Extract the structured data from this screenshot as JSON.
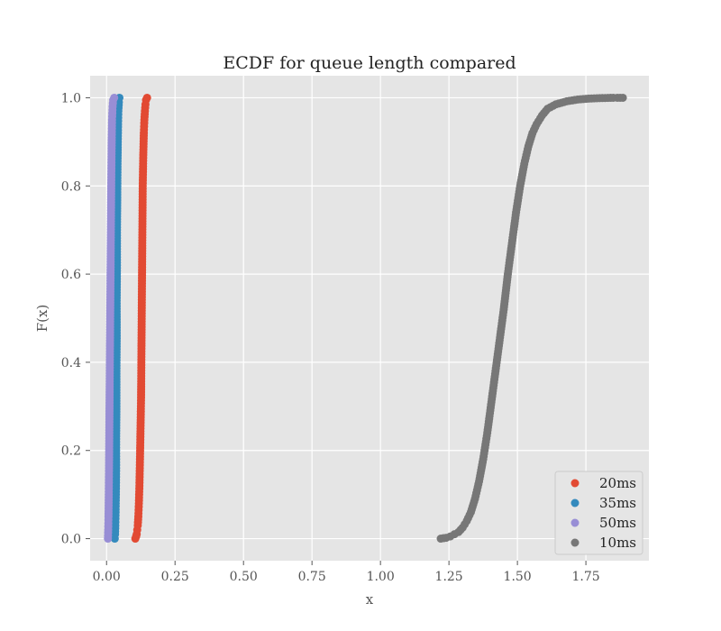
{
  "chart_data": {
    "type": "scatter",
    "title": "ECDF for queue length compared",
    "xlabel": "x",
    "ylabel": "F(x)",
    "xlim": [
      -0.06,
      1.98
    ],
    "ylim": [
      -0.05,
      1.05
    ],
    "xticks": [
      0.0,
      0.25,
      0.5,
      0.75,
      1.0,
      1.25,
      1.5,
      1.75
    ],
    "xtick_labels": [
      "0.00",
      "0.25",
      "0.50",
      "0.75",
      "1.00",
      "1.25",
      "1.50",
      "1.75"
    ],
    "yticks": [
      0.0,
      0.2,
      0.4,
      0.6,
      0.8,
      1.0
    ],
    "ytick_labels": [
      "0.0",
      "0.2",
      "0.4",
      "0.6",
      "0.8",
      "1.0"
    ],
    "grid": true,
    "legend_position": "bottom-right",
    "series": [
      {
        "name": "20ms",
        "color": "#E24A33",
        "points": [
          [
            0.105,
            0.0
          ],
          [
            0.108,
            0.005
          ],
          [
            0.11,
            0.01
          ],
          [
            0.112,
            0.02
          ],
          [
            0.114,
            0.03
          ],
          [
            0.116,
            0.05
          ],
          [
            0.118,
            0.08
          ],
          [
            0.12,
            0.12
          ],
          [
            0.122,
            0.18
          ],
          [
            0.124,
            0.25
          ],
          [
            0.126,
            0.32
          ],
          [
            0.127,
            0.4
          ],
          [
            0.128,
            0.48
          ],
          [
            0.129,
            0.56
          ],
          [
            0.13,
            0.64
          ],
          [
            0.131,
            0.72
          ],
          [
            0.132,
            0.8
          ],
          [
            0.134,
            0.87
          ],
          [
            0.136,
            0.92
          ],
          [
            0.138,
            0.95
          ],
          [
            0.14,
            0.97
          ],
          [
            0.142,
            0.985
          ],
          [
            0.144,
            0.995
          ],
          [
            0.148,
            1.0
          ]
        ]
      },
      {
        "name": "35ms",
        "color": "#348ABD",
        "points": [
          [
            0.03,
            0.0
          ],
          [
            0.031,
            0.01
          ],
          [
            0.032,
            0.03
          ],
          [
            0.033,
            0.06
          ],
          [
            0.034,
            0.1
          ],
          [
            0.035,
            0.16
          ],
          [
            0.035,
            0.22
          ],
          [
            0.036,
            0.3
          ],
          [
            0.036,
            0.38
          ],
          [
            0.037,
            0.46
          ],
          [
            0.037,
            0.54
          ],
          [
            0.038,
            0.62
          ],
          [
            0.038,
            0.7
          ],
          [
            0.039,
            0.78
          ],
          [
            0.04,
            0.85
          ],
          [
            0.041,
            0.9
          ],
          [
            0.042,
            0.94
          ],
          [
            0.043,
            0.97
          ],
          [
            0.045,
            0.99
          ],
          [
            0.047,
            1.0
          ]
        ]
      },
      {
        "name": "50ms",
        "color": "#988ED5",
        "points": [
          [
            0.005,
            0.0
          ],
          [
            0.006,
            0.02
          ],
          [
            0.007,
            0.05
          ],
          [
            0.008,
            0.1
          ],
          [
            0.009,
            0.16
          ],
          [
            0.01,
            0.24
          ],
          [
            0.011,
            0.32
          ],
          [
            0.012,
            0.4
          ],
          [
            0.013,
            0.48
          ],
          [
            0.014,
            0.56
          ],
          [
            0.015,
            0.64
          ],
          [
            0.016,
            0.72
          ],
          [
            0.017,
            0.8
          ],
          [
            0.018,
            0.86
          ],
          [
            0.019,
            0.91
          ],
          [
            0.02,
            0.95
          ],
          [
            0.022,
            0.98
          ],
          [
            0.024,
            0.995
          ],
          [
            0.028,
            1.0
          ]
        ]
      },
      {
        "name": "10ms",
        "color": "#777777",
        "points": [
          [
            1.22,
            0.0
          ],
          [
            1.24,
            0.002
          ],
          [
            1.255,
            0.005
          ],
          [
            1.27,
            0.01
          ],
          [
            1.285,
            0.015
          ],
          [
            1.3,
            0.025
          ],
          [
            1.315,
            0.04
          ],
          [
            1.33,
            0.06
          ],
          [
            1.345,
            0.09
          ],
          [
            1.36,
            0.13
          ],
          [
            1.375,
            0.18
          ],
          [
            1.39,
            0.24
          ],
          [
            1.405,
            0.31
          ],
          [
            1.42,
            0.38
          ],
          [
            1.435,
            0.45
          ],
          [
            1.45,
            0.52
          ],
          [
            1.465,
            0.6
          ],
          [
            1.48,
            0.67
          ],
          [
            1.495,
            0.74
          ],
          [
            1.51,
            0.8
          ],
          [
            1.525,
            0.85
          ],
          [
            1.54,
            0.89
          ],
          [
            1.555,
            0.92
          ],
          [
            1.57,
            0.94
          ],
          [
            1.59,
            0.96
          ],
          [
            1.61,
            0.975
          ],
          [
            1.64,
            0.985
          ],
          [
            1.68,
            0.992
          ],
          [
            1.72,
            0.996
          ],
          [
            1.76,
            0.998
          ],
          [
            1.79,
            0.999
          ],
          [
            1.85,
            1.0
          ],
          [
            1.865,
            1.0
          ],
          [
            1.885,
            1.0
          ]
        ]
      }
    ]
  }
}
